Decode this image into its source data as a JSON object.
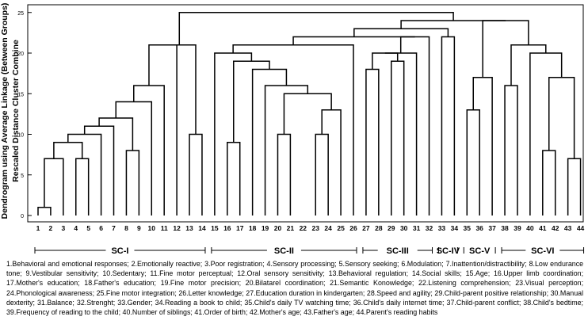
{
  "y_axis": {
    "title_line1": "Dendrogram using Average Linkage (Between Groups)",
    "title_line2": "Rescaled Distance Cluster Combine",
    "ticks": [
      "0",
      "5",
      "10",
      "15",
      "20",
      "25"
    ],
    "max": 25
  },
  "leaf_order": [
    "1",
    "2",
    "3",
    "4",
    "5",
    "6",
    "7",
    "8",
    "9",
    "10",
    "11",
    "12",
    "13",
    "14",
    "15",
    "16",
    "17",
    "18",
    "19",
    "20",
    "21",
    "22",
    "23",
    "24",
    "25",
    "26",
    "27",
    "28",
    "29",
    "30",
    "31",
    "32",
    "33",
    "34",
    "35",
    "36",
    "37",
    "38",
    "39",
    "40",
    "41",
    "42",
    "43",
    "44"
  ],
  "merges": [
    {
      "a": "L1",
      "b": "L2",
      "h": 1
    },
    {
      "a": "M0",
      "b": "L3",
      "h": 7
    },
    {
      "a": "L4",
      "b": "L5",
      "h": 7
    },
    {
      "a": "M1",
      "b": "M2",
      "h": 9
    },
    {
      "a": "M3",
      "b": "L6",
      "h": 10
    },
    {
      "a": "M4",
      "b": "L7",
      "h": 11
    },
    {
      "a": "L8",
      "b": "L9",
      "h": 8
    },
    {
      "a": "M5",
      "b": "M6",
      "h": 12
    },
    {
      "a": "M7",
      "b": "L10",
      "h": 14
    },
    {
      "a": "M8",
      "b": "L11",
      "h": 16
    },
    {
      "a": "M9",
      "b": "L12",
      "h": 21
    },
    {
      "a": "L13",
      "b": "L14",
      "h": 10
    },
    {
      "a": "M10",
      "b": "M11",
      "h": 21
    },
    {
      "a": "L16",
      "b": "L17",
      "h": 9
    },
    {
      "a": "L20",
      "b": "L21",
      "h": 10
    },
    {
      "a": "L23",
      "b": "L24",
      "h": 10
    },
    {
      "a": "M15",
      "b": "L25",
      "h": 13
    },
    {
      "a": "M14",
      "b": "M16",
      "h": 15
    },
    {
      "a": "L19",
      "b": "M17",
      "h": 16
    },
    {
      "a": "L18",
      "b": "M18",
      "h": 18
    },
    {
      "a": "M13",
      "b": "M19",
      "h": 19
    },
    {
      "a": "L15",
      "b": "M20",
      "h": 20
    },
    {
      "a": "M21",
      "b": "L26",
      "h": 21
    },
    {
      "a": "L27",
      "b": "L28",
      "h": 18
    },
    {
      "a": "L29",
      "b": "L30",
      "h": 19
    },
    {
      "a": "M23",
      "b": "M24",
      "h": 20
    },
    {
      "a": "M25",
      "b": "L31",
      "h": 20
    },
    {
      "a": "M26",
      "b": "L32",
      "h": 22
    },
    {
      "a": "M22",
      "b": "M27",
      "h": 22
    },
    {
      "a": "L33",
      "b": "L34",
      "h": 22
    },
    {
      "a": "M28",
      "b": "M29",
      "h": 23
    },
    {
      "a": "L35",
      "b": "L36",
      "h": 13
    },
    {
      "a": "M31",
      "b": "L37",
      "h": 17
    },
    {
      "a": "L38",
      "b": "L39",
      "h": 16
    },
    {
      "a": "L41",
      "b": "L42",
      "h": 8
    },
    {
      "a": "L43",
      "b": "L44",
      "h": 7
    },
    {
      "a": "M35",
      "b": "M34",
      "h": 17
    },
    {
      "a": "L40",
      "b": "M36",
      "h": 20
    },
    {
      "a": "M33",
      "b": "M37",
      "h": 21
    },
    {
      "a": "M32",
      "b": "M38",
      "h": 24
    },
    {
      "a": "M30",
      "b": "M39",
      "h": 24
    },
    {
      "a": "M12",
      "b": "M40",
      "h": 25
    }
  ],
  "groups": [
    {
      "label": "SC-I",
      "from": 1,
      "to": 14
    },
    {
      "label": "SC-II",
      "from": 15,
      "to": 26
    },
    {
      "label": "SC-III",
      "from": 27,
      "to": 32
    },
    {
      "label": "SC-IV",
      "from": 33,
      "to": 34
    },
    {
      "label": "SC-V",
      "from": 35,
      "to": 37
    },
    {
      "label": "SC-VI",
      "from": 38,
      "to": 44
    }
  ],
  "legend": [
    "1.Behavioral and emotional responses;",
    "2.Emotionally reactive;",
    "3.Poor registration;",
    "4.Sensory processing;",
    "5.Sensory seeking;",
    "6.Modulation;",
    "7.Inattention/distractibility;",
    "8.Low endurance tone;",
    "9.Vestibular sensitivity;",
    "10.Sedentary;",
    "11.Fine motor perceptual;",
    "12.Oral sensory sensitivity;",
    "13.Behavioral regulation;",
    "14.Social skills;",
    "15.Age;",
    "16.Upper limb coordination;",
    "17.Mother's education;",
    "18.Father's education;",
    "19.Fine motor precision;",
    "20.Bilatarel coordination;",
    "21.Semantic Konowledge;",
    "22.Listening comprehension;",
    "23.Visual perception;",
    "24.Phonological awareness;",
    "25.Fine motor integration;",
    "26.Letter knowledge;",
    "27.Education duration in kindergarten;",
    "28.Speed and agility;",
    "29.Child-parent positive relationship;",
    "30.Manual dexterity;",
    "31.Balance;",
    "32.Strenght;",
    "33.Gender;",
    "34.Reading a book to child;",
    "35.Child's daily TV watching time;",
    "36.Child's daily internet time;",
    "37.Child-parent conflict;",
    "38.Child's bedtime;",
    "39.Frequency of reading to the child;",
    "40.Number of siblings;",
    "41.Order of birth;",
    "42.Mother's age;",
    "43.Father's age;",
    "44.Parent's reading habits"
  ]
}
